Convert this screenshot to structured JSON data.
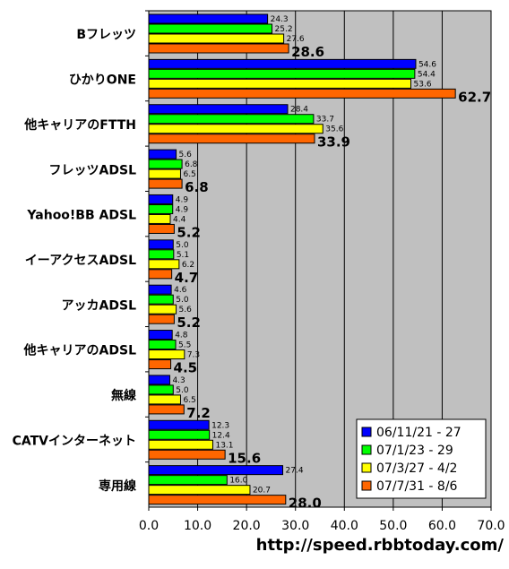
{
  "chart_data": {
    "type": "bar",
    "orientation": "horizontal",
    "categories": [
      "Bフレッツ",
      "ひかりONE",
      "他キャリアのFTTH",
      "フレッツADSL",
      "Yahoo!BB ADSL",
      "イーアクセスADSL",
      "アッカADSL",
      "他キャリアのADSL",
      "無線",
      "CATVインターネット",
      "専用線"
    ],
    "series": [
      {
        "name": "06/11/21 - 27",
        "color": "#0000ff",
        "values": [
          24.3,
          54.6,
          28.4,
          5.6,
          4.9,
          5.0,
          4.6,
          4.8,
          4.3,
          12.3,
          27.4
        ]
      },
      {
        "name": "07/1/23 - 29",
        "color": "#00ff00",
        "values": [
          25.2,
          54.4,
          33.7,
          6.8,
          4.9,
          5.1,
          5.0,
          5.5,
          5.0,
          12.4,
          16.0
        ]
      },
      {
        "name": "07/3/27 - 4/2",
        "color": "#ffff00",
        "values": [
          27.6,
          53.6,
          35.6,
          6.5,
          4.4,
          6.2,
          5.6,
          7.3,
          6.5,
          13.1,
          20.7
        ]
      },
      {
        "name": "07/7/31 - 8/6",
        "color": "#ff6600",
        "values": [
          28.6,
          62.7,
          33.9,
          6.8,
          5.2,
          4.7,
          5.2,
          4.5,
          7.2,
          15.6,
          28.0
        ]
      }
    ],
    "value_labels": [
      [
        "24.3",
        "54.6",
        "28.4",
        "5.6",
        "4.9",
        "5.0",
        "4.6",
        "4.8",
        "4.3",
        "12.3",
        "27.4"
      ],
      [
        "25.2",
        "54.4",
        "33.7",
        "6.8",
        "4.9",
        "5.1",
        "5.0",
        "5.5",
        "5.0",
        "12.4",
        "16.0"
      ],
      [
        "27.6",
        "53.6",
        "35.6",
        "6.5",
        "4.4",
        "6.2",
        "5.6",
        "7.3",
        "6.5",
        "13.1",
        "20.7"
      ],
      [
        "28.6",
        "62.7",
        "33.9",
        "6.8",
        "5.2",
        "4.7",
        "5.2",
        "4.5",
        "7.2",
        "15.6",
        "28.0"
      ]
    ],
    "xlim": [
      0,
      70
    ],
    "xticks": [
      "0.0",
      "10.0",
      "20.0",
      "30.0",
      "40.0",
      "50.0",
      "60.0",
      "70.0"
    ],
    "grid": true,
    "plot_background": "#c0c0c0",
    "legend_position": "bottom-right",
    "title": "",
    "xlabel": "",
    "ylabel": ""
  },
  "source_text": "http://speed.rbbtoday.com/"
}
